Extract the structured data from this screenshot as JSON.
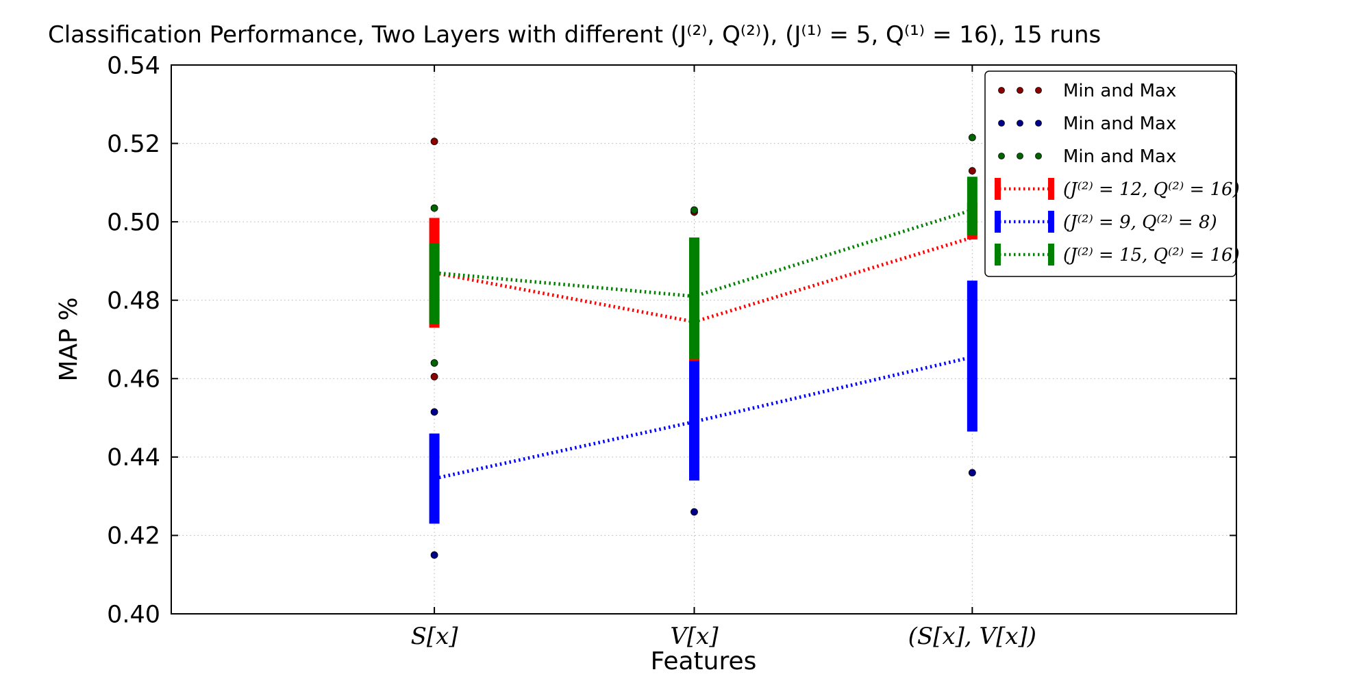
{
  "chart_data": {
    "type": "line",
    "title": "Classification Performance, Two Layers with different (J⁽²⁾, Q⁽²⁾), (J⁽¹⁾ = 5, Q⁽¹⁾ = 16), 15 runs",
    "xlabel": "Features",
    "ylabel": "MAP %",
    "categories": [
      "S[x]",
      "V[x]",
      "(S[x], V[x])"
    ],
    "ylim": [
      0.4,
      0.54
    ],
    "yticks": [
      "0.40",
      "0.42",
      "0.44",
      "0.46",
      "0.48",
      "0.50",
      "0.52",
      "0.54"
    ],
    "grid": true,
    "legend_position": "upper right",
    "series": [
      {
        "name": "(J⁽²⁾ = 12, Q⁽²⁾ = 16)",
        "color": "#ff0000",
        "dot_color": "#8b0000",
        "means": [
          0.487,
          0.4745,
          0.496
        ],
        "bar_low": [
          0.473,
          0.4635,
          0.4955
        ],
        "bar_high": [
          0.501,
          0.485,
          0.505
        ],
        "minmax_dots": [
          [
            0,
            0.4605
          ],
          [
            0,
            0.5205
          ],
          [
            1,
            0.5025
          ],
          [
            2,
            0.513
          ]
        ]
      },
      {
        "name": "(J⁽²⁾ = 9, Q⁽²⁾ = 8)",
        "color": "#0000ff",
        "dot_color": "#00008b",
        "means": [
          0.4345,
          0.449,
          0.4655
        ],
        "bar_low": [
          0.423,
          0.434,
          0.4465
        ],
        "bar_high": [
          0.446,
          0.4645,
          0.485
        ],
        "minmax_dots": [
          [
            0,
            0.415
          ],
          [
            0,
            0.4515
          ],
          [
            1,
            0.426
          ],
          [
            2,
            0.436
          ]
        ]
      },
      {
        "name": "(J⁽²⁾ = 15, Q⁽²⁾ = 16)",
        "color": "#008000",
        "dot_color": "#006400",
        "means": [
          0.487,
          0.481,
          0.503
        ],
        "bar_low": [
          0.474,
          0.465,
          0.4965
        ],
        "bar_high": [
          0.4945,
          0.496,
          0.5115
        ],
        "minmax_dots": [
          [
            0,
            0.464
          ],
          [
            0,
            0.5035
          ],
          [
            1,
            0.503
          ],
          [
            2,
            0.5215
          ]
        ]
      }
    ],
    "legend": {
      "entries": [
        {
          "type": "dots",
          "color": "#8b0000",
          "label": "Min and Max"
        },
        {
          "type": "dots",
          "color": "#00008b",
          "label": "Min and Max"
        },
        {
          "type": "dots",
          "color": "#006400",
          "label": "Min and Max"
        },
        {
          "type": "errorbar",
          "color": "#ff0000",
          "label": "(J⁽²⁾ = 12, Q⁽²⁾ = 16)"
        },
        {
          "type": "errorbar",
          "color": "#0000ff",
          "label": "(J⁽²⁾ = 9, Q⁽²⁾ = 8)"
        },
        {
          "type": "errorbar",
          "color": "#008000",
          "label": "(J⁽²⁾ = 15, Q⁽²⁾ = 16)"
        }
      ]
    }
  }
}
